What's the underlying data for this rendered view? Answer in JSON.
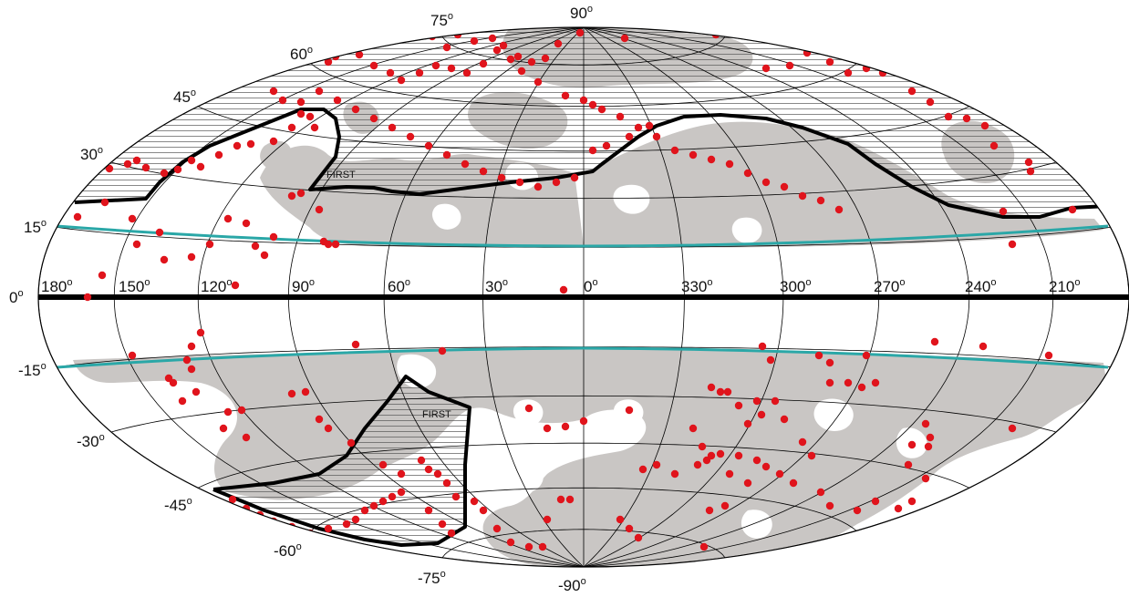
{
  "labels": {
    "lat_90": "90",
    "lat_neg90": "-90",
    "lat_75": "75",
    "lat_neg75": "-75",
    "lat_60": "60",
    "lat_neg60": "-60",
    "lat_45": "45",
    "lat_neg45": "-45",
    "lat_30": "30",
    "lat_neg30": "-30",
    "lat_15": "15",
    "lat_neg15": "-15",
    "lat_0": "0",
    "lon_180": "180",
    "lon_150": "150",
    "lon_120": "120",
    "lon_90": "90",
    "lon_60": "60",
    "lon_30": "30",
    "lon_0": "0",
    "lon_330": "330",
    "lon_300": "300",
    "lon_270": "270",
    "lon_240": "240",
    "lon_210": "210",
    "degree_sign": "o",
    "survey_north": "FIRST",
    "survey_south": "FIRST"
  },
  "colors": {
    "coverage": "#c9c6c4",
    "sources": "#e0141c",
    "boundary": "#000000",
    "galactic_band": "#2aa7a7",
    "background": "#ffffff"
  },
  "map": {
    "projection": "hammer-aitoff",
    "graticule_lat_step": 15,
    "graticule_lon_step": 30,
    "hatched_region": "northern sky above survey boundary"
  }
}
